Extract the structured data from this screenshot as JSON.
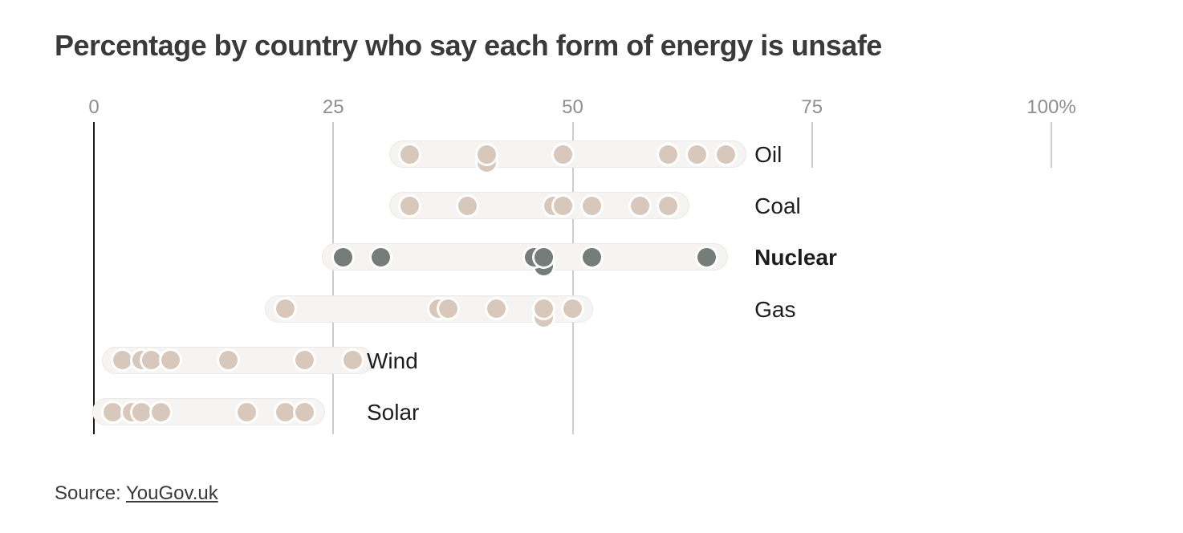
{
  "title": "Percentage by country who say each form of energy is unsafe",
  "source": {
    "prefix": "Source: ",
    "link_text": "YouGov.uk"
  },
  "colors": {
    "dot_beige": "#d8c8bc",
    "dot_gray": "#767c7a",
    "pill_bg": "#f5f4f2",
    "gridline": "#cccccc",
    "zero_axis": "#1c1c1c",
    "axis_label": "#8f8f8f",
    "category_label": "#1d1d1b",
    "title_text": "#3a3a3a"
  },
  "chart_data": {
    "type": "scatter",
    "subtype": "strip-dot-plot",
    "title": "Percentage by country who say each form of energy is unsafe",
    "xlabel": "",
    "ylabel": "",
    "xlim": [
      0,
      100
    ],
    "x_ticks": [
      0,
      25,
      50,
      75,
      100
    ],
    "x_tick_labels": [
      "0",
      "25",
      "50",
      "75",
      "100%"
    ],
    "full_gridlines_at": [
      25,
      50
    ],
    "short_ticks_at": [
      75,
      100
    ],
    "grid": "vertical-only",
    "legend": "none",
    "series": [
      {
        "label": "Oil",
        "bold": false,
        "color": "#d8c8bc",
        "values": [
          33,
          41,
          41,
          49,
          60,
          63,
          66
        ],
        "overlap_dy": [
          0,
          0,
          10,
          0,
          0,
          0,
          0
        ],
        "label_x": 69
      },
      {
        "label": "Coal",
        "bold": false,
        "color": "#d8c8bc",
        "values": [
          33,
          39,
          48,
          49,
          52,
          57,
          60
        ],
        "overlap_dy": [
          0,
          0,
          0,
          0,
          0,
          0,
          0
        ],
        "label_x": 69
      },
      {
        "label": "Nuclear",
        "bold": true,
        "color": "#767c7a",
        "values": [
          26,
          30,
          46,
          47,
          47,
          52,
          64
        ],
        "overlap_dy": [
          0,
          0,
          0,
          0,
          11,
          0,
          0
        ],
        "label_x": 69
      },
      {
        "label": "Gas",
        "bold": false,
        "color": "#d8c8bc",
        "values": [
          20,
          36,
          37,
          42,
          47,
          47,
          50
        ],
        "overlap_dy": [
          0,
          0,
          0,
          0,
          0,
          11,
          0
        ],
        "label_x": 69
      },
      {
        "label": "Wind",
        "bold": false,
        "color": "#d8c8bc",
        "values": [
          3,
          5,
          6,
          8,
          14,
          22,
          27
        ],
        "overlap_dy": [
          0,
          0,
          0,
          0,
          0,
          0,
          0
        ],
        "label_x": 28.5
      },
      {
        "label": "Solar",
        "bold": false,
        "color": "#d8c8bc",
        "values": [
          2,
          4,
          5,
          7,
          16,
          20,
          22
        ],
        "overlap_dy": [
          0,
          0,
          0,
          0,
          0,
          0,
          0
        ],
        "label_x": 28.5
      }
    ]
  }
}
